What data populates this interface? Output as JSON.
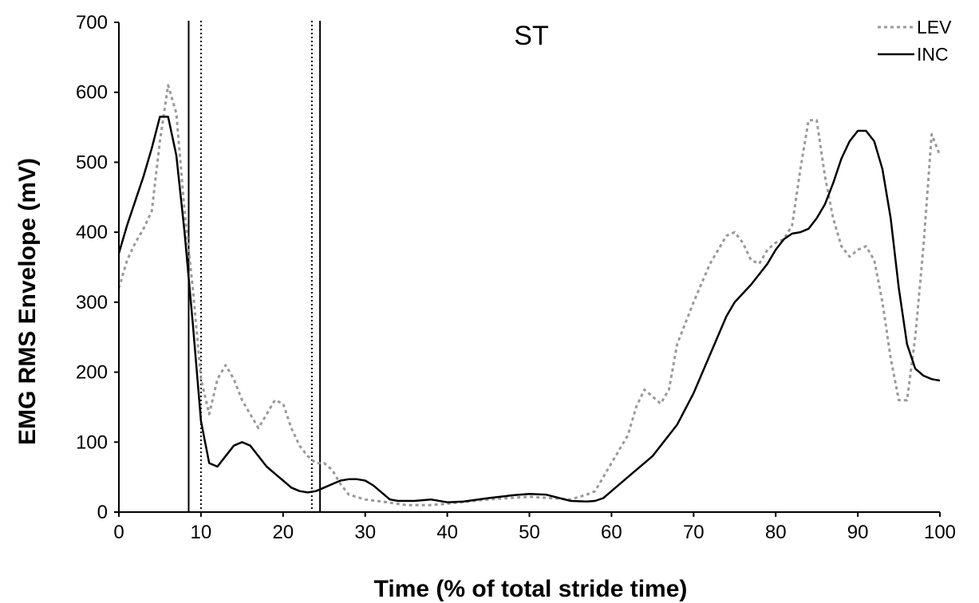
{
  "chart_data": {
    "type": "line",
    "title": "ST",
    "xlabel": "Time (% of total stride time)",
    "ylabel": "EMG RMS Envelope (mV)",
    "xlim": [
      0,
      100
    ],
    "ylim": [
      0,
      700
    ],
    "x_ticks": [
      0,
      10,
      20,
      30,
      40,
      50,
      60,
      70,
      80,
      90,
      100
    ],
    "y_ticks": [
      0,
      100,
      200,
      300,
      400,
      500,
      600,
      700
    ],
    "grid": false,
    "legend_position": "top-right",
    "series": [
      {
        "name": "LEV",
        "style": "dotted",
        "color": "#9a9a9a",
        "points": [
          [
            0,
            320
          ],
          [
            1,
            360
          ],
          [
            2,
            385
          ],
          [
            3,
            405
          ],
          [
            4,
            430
          ],
          [
            5,
            530
          ],
          [
            6,
            610
          ],
          [
            7,
            570
          ],
          [
            8,
            430
          ],
          [
            9,
            320
          ],
          [
            10,
            190
          ],
          [
            11,
            140
          ],
          [
            12,
            190
          ],
          [
            13,
            210
          ],
          [
            14,
            190
          ],
          [
            15,
            160
          ],
          [
            16,
            140
          ],
          [
            17,
            120
          ],
          [
            18,
            140
          ],
          [
            19,
            160
          ],
          [
            20,
            155
          ],
          [
            21,
            120
          ],
          [
            22,
            95
          ],
          [
            23,
            80
          ],
          [
            24,
            70
          ],
          [
            25,
            70
          ],
          [
            26,
            60
          ],
          [
            27,
            40
          ],
          [
            28,
            25
          ],
          [
            30,
            18
          ],
          [
            32,
            15
          ],
          [
            35,
            10
          ],
          [
            38,
            10
          ],
          [
            40,
            12
          ],
          [
            45,
            18
          ],
          [
            50,
            22
          ],
          [
            55,
            18
          ],
          [
            57,
            25
          ],
          [
            58,
            30
          ],
          [
            60,
            70
          ],
          [
            62,
            110
          ],
          [
            63,
            150
          ],
          [
            64,
            175
          ],
          [
            65,
            165
          ],
          [
            66,
            155
          ],
          [
            67,
            175
          ],
          [
            68,
            240
          ],
          [
            70,
            300
          ],
          [
            72,
            355
          ],
          [
            74,
            395
          ],
          [
            75,
            400
          ],
          [
            76,
            385
          ],
          [
            77,
            360
          ],
          [
            78,
            355
          ],
          [
            79,
            375
          ],
          [
            80,
            385
          ],
          [
            81,
            390
          ],
          [
            82,
            410
          ],
          [
            83,
            490
          ],
          [
            84,
            560
          ],
          [
            85,
            560
          ],
          [
            86,
            480
          ],
          [
            87,
            420
          ],
          [
            88,
            380
          ],
          [
            89,
            365
          ],
          [
            90,
            375
          ],
          [
            91,
            380
          ],
          [
            92,
            360
          ],
          [
            93,
            300
          ],
          [
            94,
            220
          ],
          [
            95,
            160
          ],
          [
            96,
            160
          ],
          [
            97,
            250
          ],
          [
            98,
            380
          ],
          [
            99,
            540
          ],
          [
            100,
            510
          ]
        ]
      },
      {
        "name": "INC",
        "style": "solid",
        "color": "#000000",
        "points": [
          [
            0,
            370
          ],
          [
            1,
            410
          ],
          [
            2,
            445
          ],
          [
            3,
            480
          ],
          [
            4,
            520
          ],
          [
            5,
            565
          ],
          [
            6,
            565
          ],
          [
            7,
            510
          ],
          [
            8,
            400
          ],
          [
            9,
            270
          ],
          [
            10,
            130
          ],
          [
            11,
            70
          ],
          [
            12,
            65
          ],
          [
            13,
            80
          ],
          [
            14,
            95
          ],
          [
            15,
            100
          ],
          [
            16,
            95
          ],
          [
            17,
            80
          ],
          [
            18,
            65
          ],
          [
            19,
            55
          ],
          [
            20,
            45
          ],
          [
            21,
            35
          ],
          [
            22,
            30
          ],
          [
            23,
            28
          ],
          [
            24,
            30
          ],
          [
            25,
            35
          ],
          [
            26,
            40
          ],
          [
            27,
            45
          ],
          [
            28,
            47
          ],
          [
            29,
            47
          ],
          [
            30,
            45
          ],
          [
            31,
            38
          ],
          [
            32,
            28
          ],
          [
            33,
            18
          ],
          [
            34,
            16
          ],
          [
            36,
            16
          ],
          [
            38,
            18
          ],
          [
            40,
            14
          ],
          [
            42,
            15
          ],
          [
            45,
            20
          ],
          [
            48,
            24
          ],
          [
            50,
            26
          ],
          [
            52,
            25
          ],
          [
            55,
            16
          ],
          [
            57,
            15
          ],
          [
            58,
            16
          ],
          [
            59,
            20
          ],
          [
            60,
            30
          ],
          [
            62,
            50
          ],
          [
            65,
            80
          ],
          [
            68,
            125
          ],
          [
            70,
            170
          ],
          [
            72,
            225
          ],
          [
            74,
            280
          ],
          [
            75,
            300
          ],
          [
            77,
            325
          ],
          [
            79,
            355
          ],
          [
            80,
            375
          ],
          [
            81,
            390
          ],
          [
            82,
            398
          ],
          [
            83,
            400
          ],
          [
            84,
            405
          ],
          [
            85,
            420
          ],
          [
            86,
            440
          ],
          [
            87,
            470
          ],
          [
            88,
            505
          ],
          [
            89,
            530
          ],
          [
            90,
            545
          ],
          [
            91,
            545
          ],
          [
            92,
            530
          ],
          [
            93,
            490
          ],
          [
            94,
            420
          ],
          [
            95,
            320
          ],
          [
            96,
            240
          ],
          [
            97,
            205
          ],
          [
            98,
            195
          ],
          [
            99,
            190
          ],
          [
            100,
            188
          ]
        ]
      }
    ],
    "vertical_lines": [
      {
        "x": 8.5,
        "style": "solid"
      },
      {
        "x": 10,
        "style": "dotted"
      },
      {
        "x": 23.5,
        "style": "dotted"
      },
      {
        "x": 24.5,
        "style": "solid"
      }
    ]
  }
}
